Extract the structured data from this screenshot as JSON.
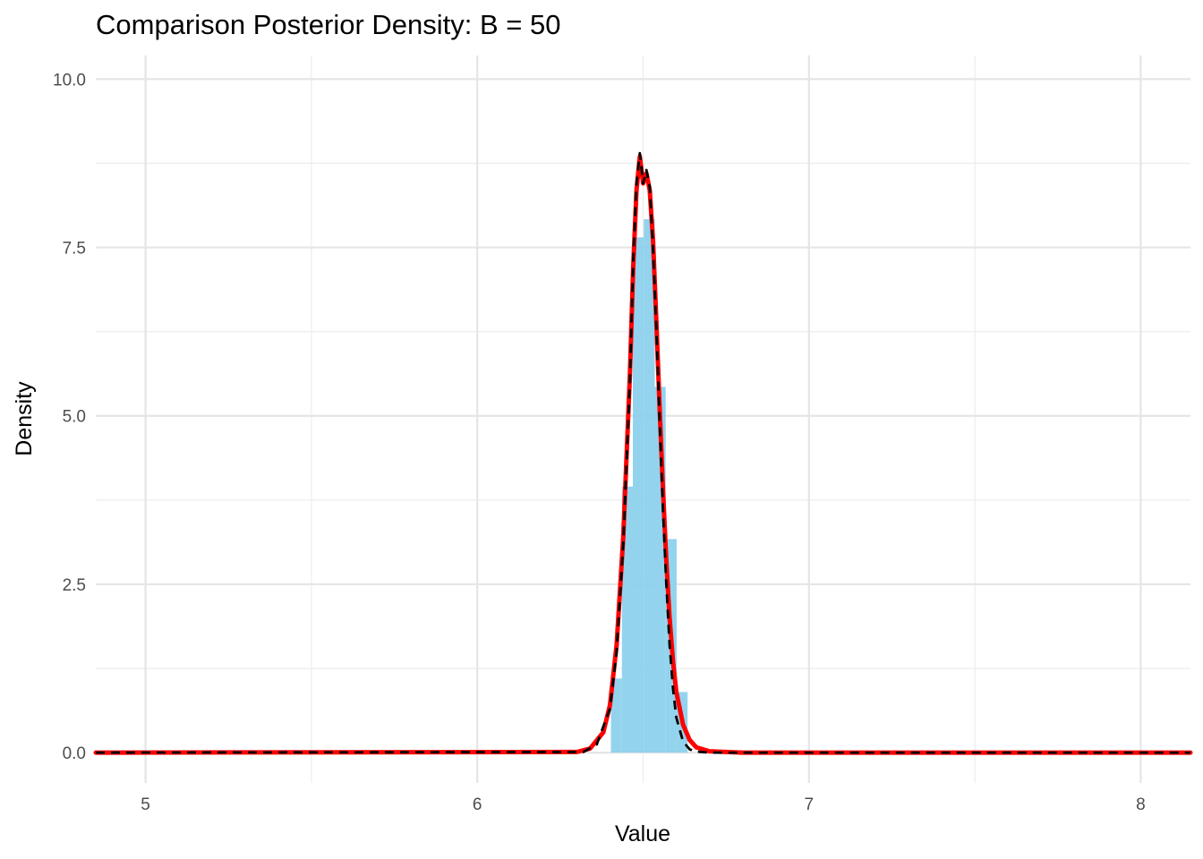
{
  "chart_data": {
    "type": "histogram",
    "title": "Comparison Posterior Density: B = 50",
    "xlabel": "Value",
    "ylabel": "Density",
    "xlim": [
      4.85,
      8.15
    ],
    "ylim": [
      -0.45,
      10.35
    ],
    "x_ticks": [
      5,
      6,
      7,
      8
    ],
    "x_tick_labels": [
      "5",
      "6",
      "7",
      "8"
    ],
    "x_minor_ticks": [
      5.5,
      6.5,
      7.5
    ],
    "y_ticks": [
      0,
      2.5,
      5,
      7.5,
      10
    ],
    "y_tick_labels": [
      "0.0",
      "2.5",
      "5.0",
      "7.5",
      "10.0"
    ],
    "y_minor_ticks": [
      1.25,
      3.75,
      6.25,
      8.75
    ],
    "grid": true,
    "histogram": {
      "color": "#87ceeb",
      "bin_width": 0.033,
      "bins": [
        {
          "x0": 6.403,
          "x1": 6.436,
          "density": 1.1
        },
        {
          "x0": 6.436,
          "x1": 6.469,
          "density": 3.95
        },
        {
          "x0": 6.469,
          "x1": 6.502,
          "density": 7.65
        },
        {
          "x0": 6.502,
          "x1": 6.535,
          "density": 7.92
        },
        {
          "x0": 6.535,
          "x1": 6.568,
          "density": 5.43
        },
        {
          "x0": 6.568,
          "x1": 6.601,
          "density": 3.17
        },
        {
          "x0": 6.601,
          "x1": 6.634,
          "density": 0.9
        }
      ]
    },
    "series": [
      {
        "style": "solid",
        "color": "#ff0000",
        "x": [
          4.85,
          6.3,
          6.34,
          6.38,
          6.4,
          6.42,
          6.44,
          6.46,
          6.47,
          6.48,
          6.49,
          6.5,
          6.51,
          6.52,
          6.53,
          6.54,
          6.55,
          6.56,
          6.57,
          6.58,
          6.59,
          6.6,
          6.62,
          6.64,
          6.66,
          6.7,
          6.8,
          8.15
        ],
        "y": [
          0,
          0.01,
          0.06,
          0.3,
          0.7,
          1.6,
          3.2,
          5.6,
          7.2,
          8.35,
          8.85,
          8.45,
          8.6,
          8.35,
          7.6,
          6.4,
          5.1,
          3.9,
          2.85,
          2.0,
          1.35,
          0.9,
          0.42,
          0.19,
          0.08,
          0.02,
          0,
          0
        ]
      },
      {
        "style": "dashed",
        "color": "#000000",
        "x": [
          4.85,
          6.32,
          6.36,
          6.4,
          6.42,
          6.44,
          6.46,
          6.47,
          6.48,
          6.49,
          6.495,
          6.5,
          6.51,
          6.52,
          6.53,
          6.54,
          6.55,
          6.56,
          6.57,
          6.58,
          6.59,
          6.6,
          6.62,
          6.64,
          6.66,
          6.7,
          8.15
        ],
        "y": [
          0,
          0.01,
          0.12,
          0.65,
          1.5,
          3.1,
          5.5,
          7.3,
          8.45,
          8.9,
          8.7,
          8.45,
          8.65,
          8.4,
          7.5,
          6.3,
          4.9,
          3.6,
          2.5,
          1.6,
          0.95,
          0.52,
          0.17,
          0.05,
          0.015,
          0,
          0
        ]
      }
    ]
  }
}
